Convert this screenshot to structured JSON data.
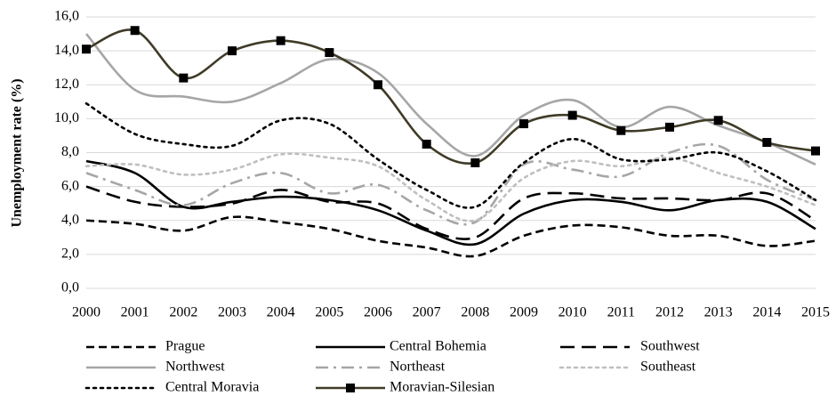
{
  "chart_data": {
    "type": "line",
    "y_label": "Unemployment rate  (%)",
    "categories": [
      "2000",
      "2001",
      "2002",
      "2003",
      "2004",
      "2005",
      "2006",
      "2007",
      "2008",
      "2009",
      "2010",
      "2011",
      "2012",
      "2013",
      "2014",
      "2015"
    ],
    "ylim": [
      0,
      16
    ],
    "yticks": [
      {
        "value": 0,
        "label": "0,0"
      },
      {
        "value": 2,
        "label": "2,0"
      },
      {
        "value": 4,
        "label": "4,0"
      },
      {
        "value": 6,
        "label": "6,0"
      },
      {
        "value": 8,
        "label": "8,0"
      },
      {
        "value": 10,
        "label": "10,0"
      },
      {
        "value": 12,
        "label": "12,0"
      },
      {
        "value": 14,
        "label": "14,0"
      },
      {
        "value": 16,
        "label": "16,0"
      }
    ],
    "grid": true,
    "smooth": true,
    "legend": "bottom",
    "series": [
      {
        "name": "Prague",
        "color": "#000000",
        "dash": "dashed",
        "values": [
          4.0,
          3.8,
          3.4,
          4.2,
          3.9,
          3.5,
          2.8,
          2.4,
          1.9,
          3.1,
          3.7,
          3.6,
          3.1,
          3.1,
          2.5,
          2.8
        ]
      },
      {
        "name": "Central Bohemia",
        "color": "#000000",
        "dash": "solid",
        "values": [
          7.5,
          6.8,
          4.8,
          5.1,
          5.4,
          5.2,
          4.6,
          3.4,
          2.6,
          4.4,
          5.2,
          5.1,
          4.6,
          5.2,
          5.1,
          3.5
        ]
      },
      {
        "name": "Southwest",
        "color": "#000000",
        "dash": "longdash",
        "values": [
          6.0,
          5.1,
          4.8,
          5.0,
          5.8,
          5.1,
          5.0,
          3.5,
          3.0,
          5.3,
          5.6,
          5.3,
          5.3,
          5.2,
          5.6,
          4.0
        ]
      },
      {
        "name": "Northwest",
        "color": "#a6a6a6",
        "dash": "solid",
        "values": [
          15.0,
          11.7,
          11.3,
          11.0,
          12.1,
          13.5,
          12.7,
          9.7,
          7.8,
          10.2,
          11.1,
          9.5,
          10.7,
          9.6,
          8.6,
          7.3
        ]
      },
      {
        "name": "Northeast",
        "color": "#a6a6a6",
        "dash": "dashdot",
        "values": [
          6.8,
          5.8,
          4.9,
          6.2,
          6.8,
          5.6,
          6.1,
          4.6,
          3.9,
          7.3,
          7.0,
          6.6,
          8.0,
          8.4,
          6.4,
          5.2
        ]
      },
      {
        "name": "Southeast",
        "color": "#bfbfbf",
        "dash": "dotted",
        "values": [
          7.2,
          7.3,
          6.7,
          7.0,
          7.9,
          7.7,
          7.2,
          5.2,
          4.0,
          6.5,
          7.5,
          7.2,
          7.7,
          6.8,
          6.0,
          4.9
        ]
      },
      {
        "name": "Central Moravia",
        "color": "#000000",
        "dash": "dotted",
        "values": [
          10.9,
          9.1,
          8.5,
          8.4,
          9.9,
          9.7,
          7.6,
          5.8,
          4.8,
          7.4,
          8.8,
          7.6,
          7.6,
          8.0,
          6.9,
          5.2
        ]
      },
      {
        "name": "Moravian-Silesian",
        "color": "#403b27",
        "dash": "solid",
        "marker": "square",
        "values": [
          14.1,
          15.2,
          12.4,
          14.0,
          14.6,
          13.9,
          12.0,
          8.5,
          7.4,
          9.7,
          10.2,
          9.3,
          9.5,
          9.9,
          8.6,
          8.1
        ]
      }
    ]
  }
}
